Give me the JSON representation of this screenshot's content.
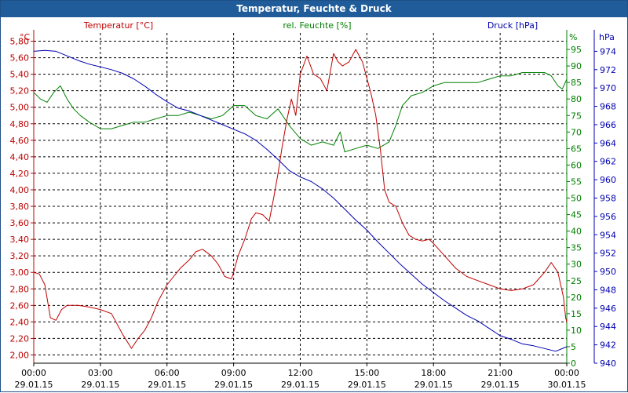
{
  "window": {
    "title": "Temperatur, Feuchte & Druck"
  },
  "colors": {
    "temperature": "#c00000",
    "humidity": "#008000",
    "pressure": "#0000b0",
    "grid": "#000000",
    "axis_text": "#000000",
    "title_bar": "#1f5c99"
  },
  "chart_data": {
    "type": "line",
    "title": "Temperatur, Feuchte & Druck",
    "x_ticks": [
      {
        "time": "00:00",
        "date": "29.01.15"
      },
      {
        "time": "03:00",
        "date": "29.01.15"
      },
      {
        "time": "06:00",
        "date": "29.01.15"
      },
      {
        "time": "09:00",
        "date": "29.01.15"
      },
      {
        "time": "12:00",
        "date": "29.01.15"
      },
      {
        "time": "15:00",
        "date": "29.01.15"
      },
      {
        "time": "18:00",
        "date": "29.01.15"
      },
      {
        "time": "21:00",
        "date": "29.01.15"
      },
      {
        "time": "00:00",
        "date": "30.01.15"
      }
    ],
    "xlim_hours": [
      0,
      24
    ],
    "axes": {
      "temperature": {
        "label": "Temperatur [°C]",
        "unit": "°C",
        "ylim": [
          1.9,
          5.9
        ],
        "ticks": [
          "2,00",
          "2,20",
          "2,40",
          "2,60",
          "2,80",
          "3,00",
          "3,20",
          "3,40",
          "3,60",
          "3,80",
          "4,00",
          "4,20",
          "4,40",
          "4,60",
          "4,80",
          "5,00",
          "5,20",
          "5,40",
          "5,60",
          "5,80"
        ]
      },
      "humidity": {
        "label": "rel. Feuchte [%]",
        "unit": "%",
        "ylim": [
          0,
          100
        ],
        "ticks": [
          "0",
          "5",
          "10",
          "15",
          "20",
          "25",
          "30",
          "35",
          "40",
          "45",
          "50",
          "55",
          "60",
          "65",
          "70",
          "75",
          "80",
          "85",
          "90",
          "95"
        ]
      },
      "pressure": {
        "label": "Druck [hPa]",
        "unit": "hPa",
        "ylim": [
          940,
          976
        ],
        "ticks": [
          "940",
          "942",
          "944",
          "946",
          "948",
          "950",
          "952",
          "954",
          "956",
          "958",
          "960",
          "962",
          "964",
          "966",
          "968",
          "970",
          "972",
          "974"
        ]
      }
    },
    "series": [
      {
        "name": "Temperatur [°C]",
        "axis": "temperature",
        "color": "#c00000",
        "x": [
          0,
          0.25,
          0.5,
          0.75,
          1.0,
          1.25,
          1.5,
          2.0,
          2.5,
          3.0,
          3.5,
          4.0,
          4.4,
          4.7,
          5.0,
          5.3,
          5.6,
          6.0,
          6.3,
          6.6,
          7.0,
          7.3,
          7.6,
          8.0,
          8.3,
          8.6,
          8.9,
          9.0,
          9.2,
          9.5,
          9.8,
          10.0,
          10.3,
          10.6,
          10.8,
          11.0,
          11.2,
          11.4,
          11.6,
          11.8,
          12.0,
          12.3,
          12.6,
          12.9,
          13.2,
          13.5,
          13.7,
          13.9,
          14.2,
          14.5,
          14.8,
          15.0,
          15.2,
          15.4,
          15.6,
          15.8,
          16.0,
          16.3,
          16.6,
          16.9,
          17.2,
          17.5,
          17.8,
          18.0,
          18.5,
          19.0,
          19.5,
          20.0,
          20.5,
          21.0,
          21.5,
          22.0,
          22.5,
          23.0,
          23.3,
          23.6,
          23.85,
          23.95,
          24.0
        ],
        "values": [
          3.0,
          2.98,
          2.85,
          2.45,
          2.42,
          2.55,
          2.6,
          2.6,
          2.58,
          2.55,
          2.5,
          2.25,
          2.08,
          2.2,
          2.3,
          2.45,
          2.65,
          2.85,
          2.95,
          3.05,
          3.15,
          3.25,
          3.28,
          3.2,
          3.1,
          2.95,
          2.92,
          3.0,
          3.2,
          3.4,
          3.65,
          3.72,
          3.7,
          3.62,
          3.9,
          4.2,
          4.55,
          4.85,
          5.1,
          4.9,
          5.4,
          5.62,
          5.4,
          5.35,
          5.2,
          5.65,
          5.55,
          5.5,
          5.55,
          5.7,
          5.55,
          5.35,
          5.15,
          4.9,
          4.5,
          4.0,
          3.85,
          3.8,
          3.6,
          3.45,
          3.4,
          3.38,
          3.4,
          3.35,
          3.2,
          3.05,
          2.95,
          2.9,
          2.85,
          2.8,
          2.78,
          2.8,
          2.85,
          3.0,
          3.12,
          3.0,
          2.7,
          2.45,
          2.4
        ]
      },
      {
        "name": "rel. Feuchte [%]",
        "axis": "humidity",
        "color": "#008000",
        "x": [
          0,
          0.3,
          0.6,
          0.9,
          1.2,
          1.5,
          1.8,
          2.1,
          2.5,
          3.0,
          3.5,
          4.0,
          4.5,
          5.0,
          5.5,
          6.0,
          6.5,
          7.0,
          7.5,
          8.0,
          8.5,
          9.0,
          9.5,
          10.0,
          10.5,
          11.0,
          11.5,
          12.0,
          12.5,
          13.0,
          13.5,
          13.8,
          14.0,
          14.5,
          15.0,
          15.5,
          16.0,
          16.3,
          16.6,
          17.0,
          17.5,
          18.0,
          18.5,
          19.0,
          19.5,
          20.0,
          20.5,
          21.0,
          21.5,
          22.0,
          22.5,
          23.0,
          23.3,
          23.6,
          23.8,
          24.0
        ],
        "values": [
          82,
          80,
          79,
          82,
          84,
          80,
          77,
          75,
          73,
          71,
          71,
          72,
          73,
          73,
          74,
          75,
          75,
          76,
          75,
          74,
          75,
          78,
          78,
          75,
          74,
          77,
          72,
          68,
          66,
          67,
          66,
          70,
          64,
          65,
          66,
          65,
          67,
          72,
          78,
          81,
          82,
          84,
          85,
          85,
          85,
          85,
          86,
          87,
          87,
          88,
          88,
          88,
          87,
          84,
          83,
          86
        ]
      },
      {
        "name": "Druck [hPa]",
        "axis": "pressure",
        "color": "#0000b0",
        "x": [
          0,
          0.5,
          1.0,
          1.5,
          2.0,
          2.5,
          3.0,
          3.5,
          4.0,
          4.5,
          5.0,
          5.5,
          6.0,
          6.5,
          7.0,
          7.5,
          8.0,
          8.5,
          9.0,
          9.5,
          10.0,
          10.5,
          11.0,
          11.5,
          12.0,
          12.5,
          13.0,
          13.5,
          14.0,
          14.5,
          15.0,
          15.5,
          16.0,
          16.5,
          17.0,
          17.5,
          18.0,
          18.5,
          19.0,
          19.5,
          20.0,
          20.5,
          21.0,
          21.5,
          22.0,
          22.5,
          23.0,
          23.5,
          24.0
        ],
        "values": [
          974.0,
          974.1,
          974.0,
          973.5,
          973.0,
          972.6,
          972.3,
          972.0,
          971.6,
          971.0,
          970.2,
          969.3,
          968.5,
          967.8,
          967.5,
          967.0,
          966.5,
          966.0,
          965.5,
          965.0,
          964.3,
          963.3,
          962.2,
          961.0,
          960.3,
          959.8,
          959.0,
          958.0,
          956.8,
          955.6,
          954.5,
          953.2,
          952.0,
          950.8,
          949.7,
          948.6,
          947.7,
          946.8,
          946.0,
          945.2,
          944.6,
          943.8,
          943.0,
          942.6,
          942.1,
          941.9,
          941.6,
          941.3,
          941.8
        ]
      }
    ]
  }
}
